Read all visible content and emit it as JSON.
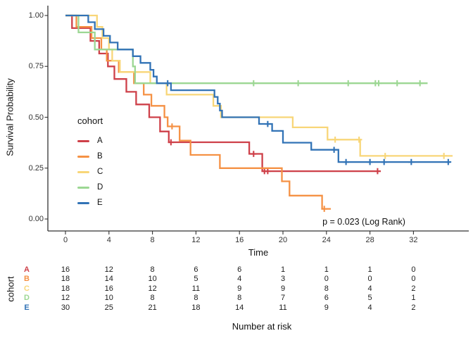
{
  "figure": {
    "y_axis": {
      "title": "Survival Probability",
      "ticks": [
        {
          "label": "1.00",
          "value": 1
        },
        {
          "label": "0.75",
          "value": 0.75
        },
        {
          "label": "0.50",
          "value": 0.5
        },
        {
          "label": "0.25",
          "value": 0.25
        },
        {
          "label": "0.00",
          "value": 0
        }
      ]
    },
    "x_axis": {
      "title": "Time",
      "ticks": [
        {
          "label": "0",
          "value": 0
        },
        {
          "label": "4",
          "value": 4
        },
        {
          "label": "8",
          "value": 8
        },
        {
          "label": "12",
          "value": 12
        },
        {
          "label": "16",
          "value": 16
        },
        {
          "label": "20",
          "value": 20
        },
        {
          "label": "24",
          "value": 24
        },
        {
          "label": "28",
          "value": 28
        },
        {
          "label": "32",
          "value": 32
        }
      ]
    },
    "legend": {
      "title": "cohort"
    },
    "p_value": "p = 0.023 (Log Rank)"
  },
  "chart_data": {
    "type": "line",
    "subtype": "kaplan_meier_step_curves",
    "title": "",
    "xlabel": "Time",
    "ylabel": "Survival Probability",
    "xlim": [
      -1.6,
      37
    ],
    "ylim": [
      0,
      1
    ],
    "x_ticks": [
      0,
      4,
      8,
      12,
      16,
      20,
      24,
      28,
      32
    ],
    "y_ticks": [
      0,
      0.25,
      0.5,
      0.75,
      1
    ],
    "legend_position": "left-inside",
    "annotation": "p = 0.023 (Log Rank)",
    "series": [
      {
        "name": "A",
        "color": "#CE4049",
        "steps": [
          [
            0,
            1
          ],
          [
            0.6,
            0.938
          ],
          [
            2.3,
            0.875
          ],
          [
            3.1,
            0.813
          ],
          [
            3.9,
            0.75
          ],
          [
            4.5,
            0.688
          ],
          [
            5.6,
            0.625
          ],
          [
            6.5,
            0.563
          ],
          [
            7.7,
            0.5
          ],
          [
            8.7,
            0.43
          ],
          [
            9.5,
            0.377
          ],
          [
            16.9,
            0.32
          ],
          [
            18.1,
            0.235
          ]
        ],
        "censors": [
          [
            9.7,
            0.377
          ],
          [
            17.3,
            0.32
          ],
          [
            18.3,
            0.235
          ],
          [
            18.6,
            0.235
          ],
          [
            28.7,
            0.235
          ]
        ],
        "end": 29.0
      },
      {
        "name": "B",
        "color": "#F59144",
        "steps": [
          [
            0,
            1
          ],
          [
            1.0,
            0.944
          ],
          [
            2.4,
            0.889
          ],
          [
            3.3,
            0.833
          ],
          [
            3.8,
            0.778
          ],
          [
            4.9,
            0.722
          ],
          [
            6.3,
            0.667
          ],
          [
            7.2,
            0.611
          ],
          [
            7.9,
            0.556
          ],
          [
            9.1,
            0.5
          ],
          [
            9.4,
            0.455
          ],
          [
            10.5,
            0.385
          ],
          [
            11.5,
            0.315
          ],
          [
            14.2,
            0.25
          ],
          [
            19.9,
            0.185
          ],
          [
            20.6,
            0.115
          ],
          [
            23.6,
            0.05
          ]
        ],
        "censors": [
          [
            9.8,
            0.455
          ],
          [
            23.8,
            0.05
          ]
        ],
        "end": 24.4
      },
      {
        "name": "C",
        "color": "#F8D678",
        "steps": [
          [
            0,
            1
          ],
          [
            2.9,
            0.944
          ],
          [
            3.4,
            0.889
          ],
          [
            4.0,
            0.833
          ],
          [
            4.3,
            0.778
          ],
          [
            5.0,
            0.722
          ],
          [
            7.8,
            0.667
          ],
          [
            9.3,
            0.611
          ],
          [
            13.6,
            0.556
          ],
          [
            14.3,
            0.5
          ],
          [
            20.9,
            0.45
          ],
          [
            24.1,
            0.39
          ],
          [
            27.1,
            0.31
          ]
        ],
        "censors": [
          [
            24.8,
            0.39
          ],
          [
            27.0,
            0.39
          ],
          [
            29.4,
            0.31
          ],
          [
            34.8,
            0.31
          ]
        ],
        "end": 35.6
      },
      {
        "name": "D",
        "color": "#9CD793",
        "steps": [
          [
            0,
            1
          ],
          [
            1.2,
            0.917
          ],
          [
            2.7,
            0.833
          ],
          [
            6.2,
            0.75
          ],
          [
            6.4,
            0.667
          ]
        ],
        "censors": [
          [
            17.3,
            0.667
          ],
          [
            21.4,
            0.667
          ],
          [
            26.0,
            0.667
          ],
          [
            28.5,
            0.667
          ],
          [
            28.8,
            0.667
          ],
          [
            30.5,
            0.667
          ],
          [
            32.6,
            0.667
          ]
        ],
        "end": 33.3
      },
      {
        "name": "E",
        "color": "#3273B6",
        "steps": [
          [
            0,
            1
          ],
          [
            2.1,
            0.967
          ],
          [
            2.7,
            0.933
          ],
          [
            3.5,
            0.9
          ],
          [
            4.1,
            0.867
          ],
          [
            4.8,
            0.833
          ],
          [
            6.2,
            0.8
          ],
          [
            6.9,
            0.767
          ],
          [
            7.8,
            0.733
          ],
          [
            8.1,
            0.7
          ],
          [
            8.4,
            0.667
          ],
          [
            9.7,
            0.633
          ],
          [
            13.7,
            0.6
          ],
          [
            14.0,
            0.567
          ],
          [
            14.2,
            0.533
          ],
          [
            14.4,
            0.5
          ],
          [
            17.8,
            0.467
          ],
          [
            19.0,
            0.433
          ],
          [
            20.0,
            0.375
          ],
          [
            22.6,
            0.34
          ],
          [
            25.1,
            0.28
          ]
        ],
        "censors": [
          [
            9.4,
            0.667
          ],
          [
            18.6,
            0.467
          ],
          [
            24.7,
            0.34
          ],
          [
            25.8,
            0.28
          ],
          [
            28.0,
            0.28
          ],
          [
            29.3,
            0.28
          ],
          [
            31.8,
            0.28
          ],
          [
            35.2,
            0.28
          ]
        ],
        "end": 35.4
      }
    ]
  },
  "risk_table": {
    "title": "Number at risk",
    "axis_label": "cohort",
    "times": [
      0,
      4,
      8,
      12,
      16,
      20,
      24,
      28,
      32
    ],
    "rows": [
      {
        "label": "A",
        "color": "#CE4049",
        "counts": [
          16,
          12,
          8,
          6,
          6,
          1,
          1,
          1,
          0
        ]
      },
      {
        "label": "B",
        "color": "#F59144",
        "counts": [
          18,
          14,
          10,
          5,
          4,
          3,
          0,
          0,
          0
        ]
      },
      {
        "label": "C",
        "color": "#F8D678",
        "counts": [
          18,
          16,
          12,
          11,
          9,
          9,
          8,
          4,
          2
        ]
      },
      {
        "label": "D",
        "color": "#9CD793",
        "counts": [
          12,
          10,
          8,
          8,
          8,
          7,
          6,
          5,
          1
        ]
      },
      {
        "label": "E",
        "color": "#3273B6",
        "counts": [
          30,
          25,
          21,
          18,
          14,
          11,
          9,
          4,
          2
        ]
      }
    ]
  }
}
